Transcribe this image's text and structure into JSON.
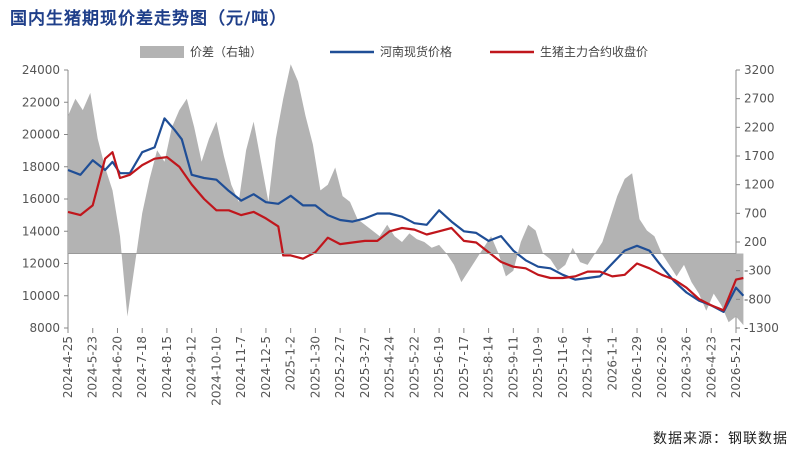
{
  "title": "国内生猪期现价差走势图（元/吨）",
  "source": "数据来源：钢联数据",
  "chart_data": {
    "type": "line",
    "x_ticks": [
      "2024-4-25",
      "2024-5-23",
      "2024-6-20",
      "2024-7-18",
      "2024-8-15",
      "2024-9-12",
      "2024-10-10",
      "2024-11-7",
      "2024-12-5",
      "2025-1-2",
      "2025-1-30",
      "2025-2-27",
      "2025-3-27",
      "2025-4-24",
      "2025-5-22",
      "2025-6-19",
      "2025-7-17",
      "2025-8-14",
      "2025-9-11",
      "2025-10-9",
      "2025-11-6",
      "2025-12-4",
      "2026-1-1",
      "2026-1-29",
      "2026-2-26",
      "2026-3-26",
      "2026-4-23",
      "2026-5-21"
    ],
    "y_left": {
      "min": 8000,
      "max": 24000,
      "ticks": [
        "24000",
        "22000",
        "20000",
        "18000",
        "16000",
        "14000",
        "12000",
        "10000",
        "8000"
      ]
    },
    "y_right": {
      "min": -1300,
      "max": 3200,
      "ticks": [
        "3200",
        "2700",
        "2200",
        "1700",
        "1200",
        "700",
        "200",
        "-300",
        "-800",
        "-1300"
      ]
    },
    "series": [
      {
        "name": "价差（右轴）",
        "axis": "right",
        "kind": "area",
        "color": "#b3b3b3",
        "x": [
          0,
          0.3,
          0.6,
          0.9,
          1.2,
          1.5,
          1.8,
          2.1,
          2.4,
          2.7,
          3.0,
          3.3,
          3.6,
          3.9,
          4.2,
          4.5,
          4.8,
          5.1,
          5.4,
          5.7,
          6.0,
          6.3,
          6.6,
          6.9,
          7.2,
          7.5,
          7.8,
          8.1,
          8.4,
          8.7,
          9.0,
          9.3,
          9.6,
          9.9,
          10.2,
          10.5,
          10.8,
          11.1,
          11.4,
          11.7,
          12.0,
          12.3,
          12.6,
          12.9,
          13.2,
          13.5,
          13.8,
          14.1,
          14.4,
          14.7,
          15.0,
          15.3,
          15.6,
          15.9,
          16.2,
          16.5,
          16.8,
          17.1,
          17.4,
          17.7,
          18.0,
          18.3,
          18.6,
          18.9,
          19.2,
          19.5,
          19.8,
          20.1,
          20.4,
          20.7,
          21.0,
          21.3,
          21.6,
          21.9,
          22.2,
          22.5,
          22.8,
          23.1,
          23.4,
          23.7,
          24.0,
          24.3,
          24.6,
          24.9,
          25.2,
          25.5,
          25.8,
          26.1,
          26.4,
          26.7,
          27.0,
          27.3
        ],
        "y": [
          2400,
          2700,
          2500,
          2800,
          2000,
          1500,
          1100,
          300,
          -1100,
          -200,
          700,
          1300,
          1800,
          1600,
          2200,
          2500,
          2700,
          2200,
          1600,
          2000,
          2300,
          1700,
          1200,
          900,
          1800,
          2300,
          1600,
          900,
          2000,
          2700,
          3300,
          3000,
          2400,
          1900,
          1100,
          1200,
          1500,
          1000,
          900,
          600,
          500,
          400,
          300,
          500,
          300,
          200,
          350,
          250,
          200,
          100,
          150,
          0,
          -200,
          -500,
          -300,
          -100,
          100,
          300,
          0,
          -400,
          -300,
          200,
          500,
          400,
          0,
          -100,
          -300,
          -200,
          100,
          -150,
          -200,
          0,
          200,
          600,
          1000,
          1300,
          1400,
          600,
          400,
          300,
          0,
          -200,
          -400,
          -200,
          -500,
          -700,
          -1000,
          -700,
          -900,
          -1200,
          -1100,
          -1250
        ]
      },
      {
        "name": "河南现货价格",
        "axis": "left",
        "kind": "line",
        "color": "#1f4e96",
        "x": [
          0,
          0.5,
          1.0,
          1.5,
          1.8,
          2.1,
          2.5,
          3.0,
          3.5,
          3.9,
          4.3,
          4.6,
          5.0,
          5.5,
          6.0,
          6.5,
          7.0,
          7.5,
          8.0,
          8.5,
          9.0,
          9.5,
          10.0,
          10.5,
          11.0,
          11.5,
          12.0,
          12.5,
          13.0,
          13.5,
          14.0,
          14.5,
          15.0,
          15.5,
          16.0,
          16.5,
          17.0,
          17.5,
          18.0,
          18.5,
          19.0,
          19.5,
          20.0,
          20.5,
          21.0,
          21.5,
          22.0,
          22.5,
          23.0,
          23.5,
          24.0,
          24.5,
          25.0,
          25.5,
          26.0,
          26.5,
          27.0,
          27.3
        ],
        "y": [
          17800,
          17500,
          18400,
          17800,
          18300,
          17600,
          17600,
          18900,
          19200,
          21000,
          20300,
          19700,
          17500,
          17300,
          17200,
          16500,
          15900,
          16300,
          15800,
          15700,
          16200,
          15600,
          15600,
          15000,
          14700,
          14600,
          14800,
          15100,
          15100,
          14900,
          14500,
          14400,
          15300,
          14600,
          14000,
          13900,
          13400,
          13700,
          12800,
          12200,
          11800,
          11700,
          11300,
          11000,
          11100,
          11200,
          12000,
          12800,
          13100,
          12800,
          11800,
          10900,
          10200,
          9700,
          9400,
          9000,
          10500,
          10000
        ]
      },
      {
        "name": "生猪主力合约收盘价",
        "axis": "left",
        "kind": "line",
        "color": "#c0161c",
        "x": [
          0,
          0.5,
          1.0,
          1.5,
          1.8,
          2.1,
          2.5,
          3.0,
          3.5,
          4.0,
          4.5,
          5.0,
          5.5,
          6.0,
          6.5,
          7.0,
          7.5,
          8.0,
          8.5,
          8.7,
          9.0,
          9.5,
          10.0,
          10.5,
          11.0,
          11.5,
          12.0,
          12.5,
          13.0,
          13.5,
          14.0,
          14.5,
          15.0,
          15.5,
          16.0,
          16.5,
          17.0,
          17.5,
          18.0,
          18.5,
          19.0,
          19.5,
          20.0,
          20.5,
          21.0,
          21.5,
          22.0,
          22.5,
          23.0,
          23.5,
          24.0,
          24.5,
          25.0,
          25.5,
          26.0,
          26.5,
          27.0,
          27.3
        ],
        "y": [
          15200,
          15000,
          15600,
          18500,
          18900,
          17300,
          17500,
          18100,
          18500,
          18600,
          18000,
          16900,
          16000,
          15300,
          15300,
          15000,
          15200,
          14800,
          14300,
          12500,
          12500,
          12300,
          12700,
          13600,
          13200,
          13300,
          13400,
          13400,
          14000,
          14200,
          14100,
          13800,
          14000,
          14200,
          13400,
          13300,
          12700,
          12100,
          11800,
          11700,
          11300,
          11100,
          11100,
          11200,
          11500,
          11500,
          11200,
          11300,
          12000,
          11700,
          11300,
          11000,
          10500,
          9800,
          9400,
          9100,
          11000,
          11100
        ]
      }
    ]
  },
  "legend": [
    {
      "label": "价差（右轴）",
      "swatch": "area",
      "color": "#b3b3b3"
    },
    {
      "label": "河南现货价格",
      "swatch": "line",
      "color": "#1f4e96"
    },
    {
      "label": "生猪主力合约收盘价",
      "swatch": "line",
      "color": "#c0161c"
    }
  ]
}
